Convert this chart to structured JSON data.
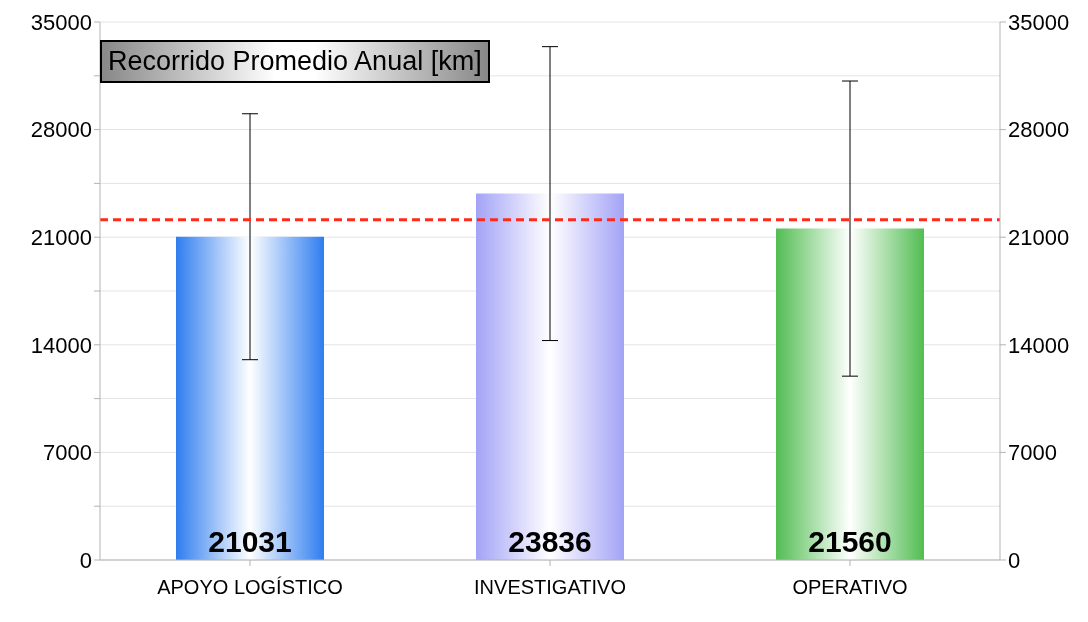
{
  "chart_data": {
    "type": "bar",
    "title": "Recorrido Promedio Anual [km]",
    "categories": [
      "APOYO LOGÍSTICO",
      "INVESTIGATIVO",
      "OPERATIVO"
    ],
    "values": [
      21031,
      23836,
      21560
    ],
    "colors": [
      "#2f7df0",
      "#a3a3f7",
      "#52bd52"
    ],
    "errors": [
      8000,
      9560,
      9600
    ],
    "data_labels": true,
    "ref_lines": [
      {
        "axis": "y",
        "value": 22140,
        "color": "#ff2a1a",
        "line_style": "dashed"
      }
    ],
    "ylim": [
      0,
      35000
    ],
    "yticks": [
      0,
      {
        "value": 3500,
        "label": null
      },
      7000,
      {
        "value": 10500,
        "label": null
      },
      14000,
      {
        "value": 17500,
        "label": null
      },
      21000,
      {
        "value": 24500,
        "label": null
      },
      28000,
      {
        "value": 31500,
        "label": null
      },
      35000
    ],
    "y2lim": [
      0,
      35000
    ],
    "y2ticks": [
      0,
      7000,
      14000,
      21000,
      28000,
      35000
    ],
    "grid": "y"
  }
}
